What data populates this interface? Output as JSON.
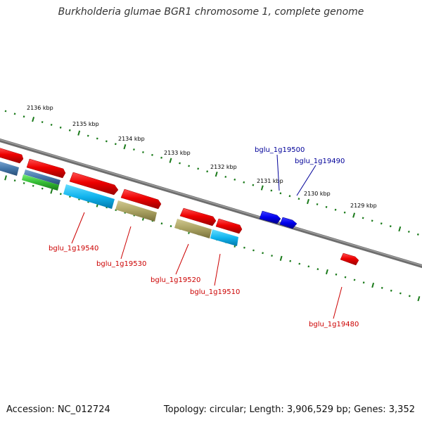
{
  "title": "Burkholderia glumae BGR1 chromosome 1, complete genome",
  "footer": {
    "accession": "Accession: NC_012724",
    "summary": "Topology: circular; Length: 3,906,529 bp; Genes: 3,352"
  },
  "ticks": [
    "2136 kbp",
    "2135 kbp",
    "2134 kbp",
    "2133 kbp",
    "2132 kbp",
    "2131 kbp",
    "2130 kbp",
    "2129 kbp"
  ],
  "genes": [
    "bglu_1g19540",
    "bglu_1g19530",
    "bglu_1g19520",
    "bglu_1g19510",
    "bglu_1g19500",
    "bglu_1g19490",
    "bglu_1g19480"
  ],
  "colors": {
    "backbone": "#7a7a7a",
    "tick": "#1a7a1a",
    "cds_forward": "#e00000",
    "cds_reverse": "#0000dd",
    "label_forward": "#cc0000",
    "label_reverse": "#000099",
    "cog_blue": "#00aadd",
    "cog_khaki": "#a8a060",
    "cog_steel": "#4477aa",
    "cog_green": "#33bb33"
  }
}
